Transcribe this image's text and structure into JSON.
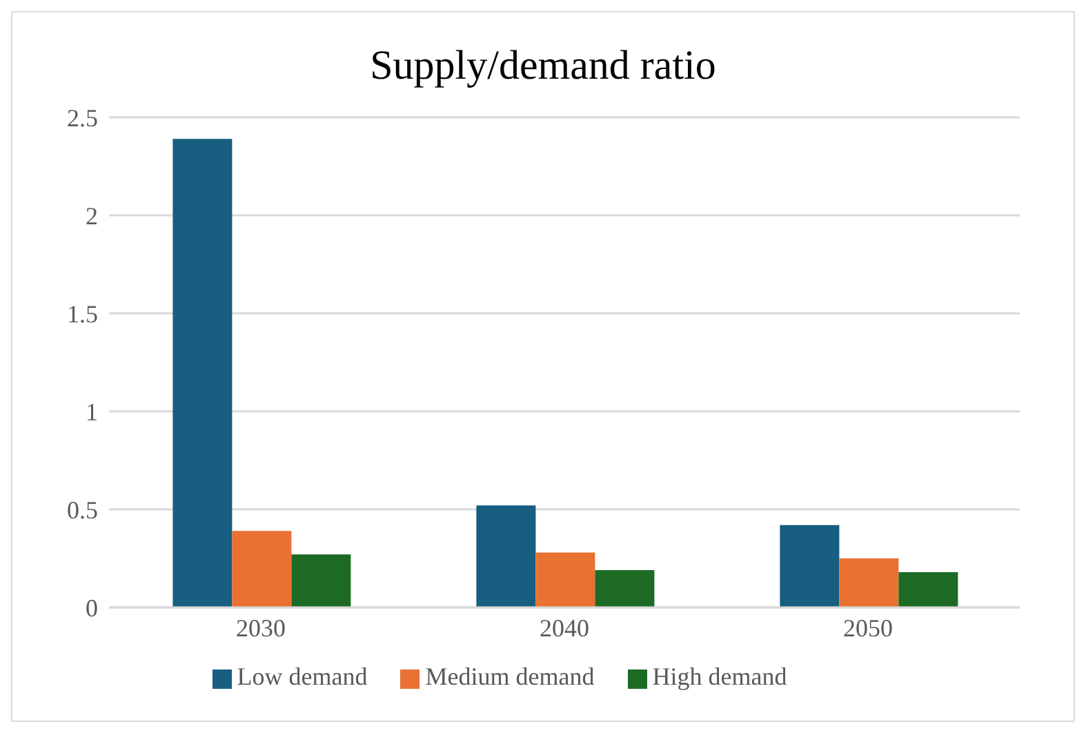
{
  "chart_data": {
    "type": "bar",
    "title": "Supply/demand ratio",
    "categories": [
      "2030",
      "2040",
      "2050"
    ],
    "series": [
      {
        "name": "Low demand",
        "color": "#175e80",
        "values": [
          2.39,
          0.52,
          0.42
        ]
      },
      {
        "name": "Medium demand",
        "color": "#e97132",
        "values": [
          0.39,
          0.28,
          0.25
        ]
      },
      {
        "name": "High demand",
        "color": "#1d6b24",
        "values": [
          0.27,
          0.19,
          0.18
        ]
      }
    ],
    "ylim": [
      0,
      2.5
    ],
    "yticks": [
      0,
      0.5,
      1,
      1.5,
      2,
      2.5
    ],
    "grid": "y",
    "legend": "bottom"
  }
}
